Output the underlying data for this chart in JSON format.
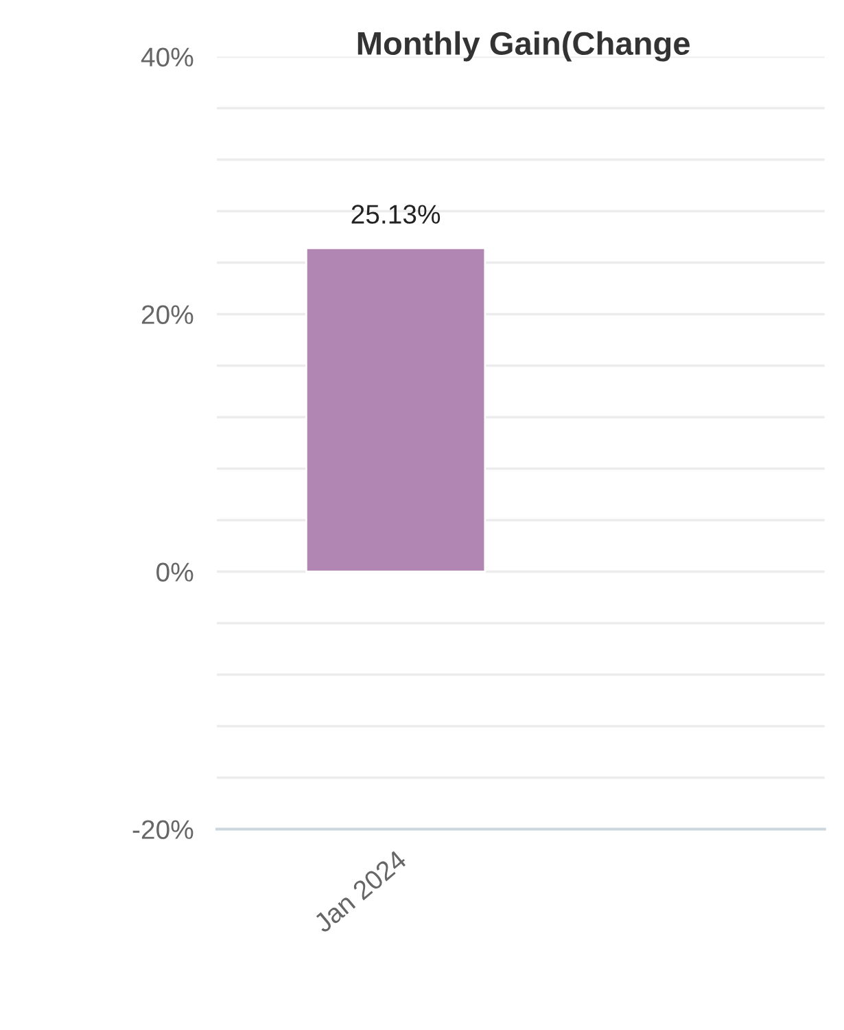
{
  "chart_data": {
    "type": "bar",
    "title": "Monthly Gain(Change",
    "categories": [
      "Jan 2024"
    ],
    "series": [
      {
        "color": "#b286b3",
        "values": [
          25.13
        ],
        "value_labels": [
          "25.13%"
        ]
      }
    ],
    "ylim": [
      -20,
      40
    ],
    "yticks": [
      {
        "value": -20,
        "label": "-20%"
      },
      {
        "value": -16,
        "label": null
      },
      {
        "value": -12,
        "label": null
      },
      {
        "value": -8,
        "label": null
      },
      {
        "value": -4,
        "label": null
      },
      {
        "value": 0,
        "label": "0%"
      },
      {
        "value": 4,
        "label": null
      },
      {
        "value": 8,
        "label": null
      },
      {
        "value": 12,
        "label": null
      },
      {
        "value": 16,
        "label": null
      },
      {
        "value": 20,
        "label": "20%"
      },
      {
        "value": 24,
        "label": null
      },
      {
        "value": 28,
        "label": null
      },
      {
        "value": 32,
        "label": null
      },
      {
        "value": 36,
        "label": null
      },
      {
        "value": 40,
        "label": "40%"
      }
    ],
    "grid": "y"
  }
}
